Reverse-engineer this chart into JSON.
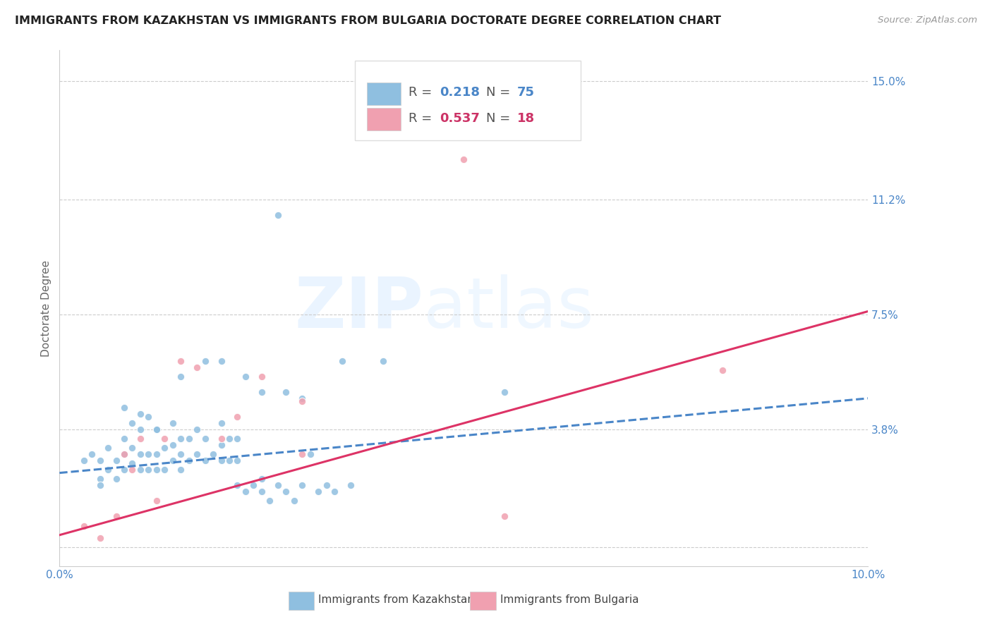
{
  "title": "IMMIGRANTS FROM KAZAKHSTAN VS IMMIGRANTS FROM BULGARIA DOCTORATE DEGREE CORRELATION CHART",
  "source": "Source: ZipAtlas.com",
  "ylabel_label": "Doctorate Degree",
  "xlim": [
    0.0,
    0.1
  ],
  "ylim": [
    -0.006,
    0.16
  ],
  "ytick_positions": [
    0.0,
    0.038,
    0.075,
    0.112,
    0.15
  ],
  "ytick_labels": [
    "",
    "3.8%",
    "7.5%",
    "11.2%",
    "15.0%"
  ],
  "xtick_positions": [
    0.0,
    0.02,
    0.04,
    0.06,
    0.08,
    0.1
  ],
  "xtick_labels": [
    "0.0%",
    "",
    "",
    "",
    "",
    "10.0%"
  ],
  "color_kaz": "#8fbfe0",
  "color_bul": "#f0a0b0",
  "color_axis_text": "#4a86c8",
  "color_kaz_text": "#4a86c8",
  "color_bul_text": "#cc3366",
  "color_kaz_trend": "#4a86c8",
  "color_bul_trend": "#dd3366",
  "bottom_label_kaz": "Immigrants from Kazakhstan",
  "bottom_label_bul": "Immigrants from Bulgaria",
  "scatter_kaz_x": [
    0.003,
    0.004,
    0.005,
    0.005,
    0.006,
    0.006,
    0.007,
    0.007,
    0.008,
    0.008,
    0.008,
    0.009,
    0.009,
    0.009,
    0.01,
    0.01,
    0.01,
    0.011,
    0.011,
    0.011,
    0.012,
    0.012,
    0.012,
    0.013,
    0.013,
    0.014,
    0.014,
    0.014,
    0.015,
    0.015,
    0.015,
    0.016,
    0.016,
    0.017,
    0.017,
    0.018,
    0.018,
    0.019,
    0.02,
    0.02,
    0.02,
    0.021,
    0.021,
    0.022,
    0.022,
    0.022,
    0.023,
    0.024,
    0.025,
    0.025,
    0.026,
    0.027,
    0.028,
    0.029,
    0.03,
    0.031,
    0.032,
    0.033,
    0.034,
    0.036,
    0.005,
    0.008,
    0.01,
    0.012,
    0.015,
    0.018,
    0.02,
    0.023,
    0.025,
    0.028,
    0.03,
    0.035,
    0.04,
    0.055,
    0.027
  ],
  "scatter_kaz_y": [
    0.028,
    0.03,
    0.022,
    0.028,
    0.025,
    0.032,
    0.022,
    0.028,
    0.025,
    0.03,
    0.035,
    0.027,
    0.032,
    0.04,
    0.025,
    0.03,
    0.038,
    0.025,
    0.03,
    0.042,
    0.025,
    0.03,
    0.038,
    0.025,
    0.032,
    0.028,
    0.033,
    0.04,
    0.025,
    0.03,
    0.035,
    0.028,
    0.035,
    0.03,
    0.038,
    0.028,
    0.035,
    0.03,
    0.028,
    0.033,
    0.04,
    0.028,
    0.035,
    0.02,
    0.028,
    0.035,
    0.018,
    0.02,
    0.018,
    0.022,
    0.015,
    0.02,
    0.018,
    0.015,
    0.02,
    0.03,
    0.018,
    0.02,
    0.018,
    0.02,
    0.02,
    0.045,
    0.043,
    0.038,
    0.055,
    0.06,
    0.06,
    0.055,
    0.05,
    0.05,
    0.048,
    0.06,
    0.06,
    0.05,
    0.107
  ],
  "scatter_bul_x": [
    0.003,
    0.005,
    0.007,
    0.008,
    0.009,
    0.01,
    0.012,
    0.013,
    0.015,
    0.017,
    0.02,
    0.022,
    0.025,
    0.03,
    0.03,
    0.055,
    0.082,
    0.05
  ],
  "scatter_bul_y": [
    0.007,
    0.003,
    0.01,
    0.03,
    0.025,
    0.035,
    0.015,
    0.035,
    0.06,
    0.058,
    0.035,
    0.042,
    0.055,
    0.047,
    0.03,
    0.01,
    0.057,
    0.125
  ],
  "trend_kaz_x0": 0.0,
  "trend_kaz_y0": 0.024,
  "trend_kaz_x1": 0.1,
  "trend_kaz_y1": 0.048,
  "trend_bul_x0": 0.0,
  "trend_bul_y0": 0.004,
  "trend_bul_x1": 0.1,
  "trend_bul_y1": 0.076
}
